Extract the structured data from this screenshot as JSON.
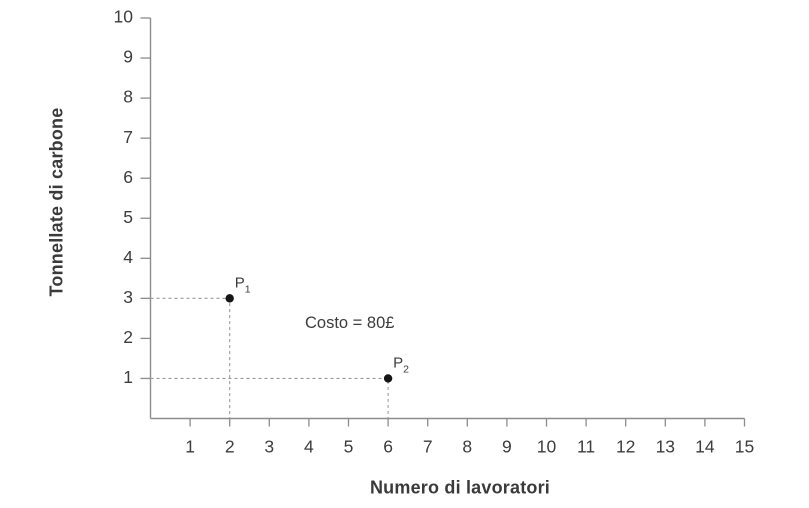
{
  "chart_data": {
    "type": "scatter",
    "title": "",
    "xlabel": "Numero di lavoratori",
    "ylabel": "Tonnellate di carbone",
    "xlim": [
      0,
      15
    ],
    "ylim": [
      0,
      10
    ],
    "x_ticks": [
      1,
      2,
      3,
      4,
      5,
      6,
      7,
      8,
      9,
      10,
      11,
      12,
      13,
      14,
      15
    ],
    "y_ticks": [
      1,
      2,
      3,
      4,
      5,
      6,
      7,
      8,
      9,
      10
    ],
    "grid": false,
    "legend": false,
    "annotation": "Costo = 80£",
    "points": [
      {
        "label": "P",
        "subscript": "1",
        "x": 2,
        "y": 3,
        "guides": "dashed-to-both-axes"
      },
      {
        "label": "P",
        "subscript": "2",
        "x": 6,
        "y": 1,
        "guides": "dashed-to-both-axes"
      }
    ],
    "colors": {
      "axis": "#8c8c8c",
      "tick_text": "#3d3d3d",
      "dash": "#9a9a9a",
      "point": "#151515",
      "annotation_text": "#3d3d3d",
      "background": "#ffffff"
    }
  }
}
